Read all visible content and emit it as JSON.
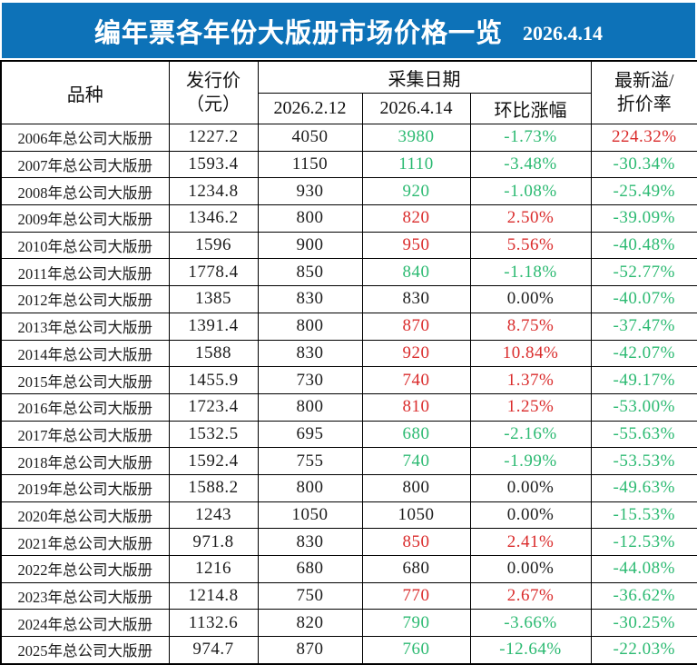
{
  "banner": {
    "title": "编年票各年份大版册市场价格一览",
    "date": "2026.4.14",
    "bg_color": "#0d72b8",
    "text_color": "#ffffff"
  },
  "header": {
    "variety": "品种",
    "issue_price_line1": "发行价",
    "issue_price_line2": "（元）",
    "collection_date": "采集日期",
    "date_col1": "2026.2.12",
    "date_col2": "2026.4.14",
    "mom_change": "环比涨幅",
    "premium_line1": "最新溢/",
    "premium_line2": "折价率"
  },
  "colors": {
    "up": "#da2c2c",
    "down": "#2cba72",
    "flat": "#1c1c1c",
    "banner_blue": "#0d72b8",
    "border_black": "#000000"
  },
  "chart_data": {
    "type": "table",
    "title": "编年票各年份大版册市场价格一览",
    "as_of_date": "2026.4.14",
    "columns": [
      "品种",
      "发行价（元）",
      "2026.2.12",
      "2026.4.14",
      "环比涨幅",
      "最新溢/折价率"
    ],
    "column_groups": {
      "采集日期": [
        "2026.2.12",
        "2026.4.14",
        "环比涨幅"
      ]
    },
    "rows": [
      {
        "variety": "2006年总公司大版册",
        "issue_price": "1227.2",
        "p1": "4050",
        "p2": "3980",
        "p2_trend": "down",
        "change": "-1.73%",
        "change_trend": "down",
        "premium": "224.32%",
        "premium_trend": "up"
      },
      {
        "variety": "2007年总公司大版册",
        "issue_price": "1593.4",
        "p1": "1150",
        "p2": "1110",
        "p2_trend": "down",
        "change": "-3.48%",
        "change_trend": "down",
        "premium": "-30.34%",
        "premium_trend": "down"
      },
      {
        "variety": "2008年总公司大版册",
        "issue_price": "1234.8",
        "p1": "930",
        "p2": "920",
        "p2_trend": "down",
        "change": "-1.08%",
        "change_trend": "down",
        "premium": "-25.49%",
        "premium_trend": "down"
      },
      {
        "variety": "2009年总公司大版册",
        "issue_price": "1346.2",
        "p1": "800",
        "p2": "820",
        "p2_trend": "up",
        "change": "2.50%",
        "change_trend": "up",
        "premium": "-39.09%",
        "premium_trend": "down"
      },
      {
        "variety": "2010年总公司大版册",
        "issue_price": "1596",
        "p1": "900",
        "p2": "950",
        "p2_trend": "up",
        "change": "5.56%",
        "change_trend": "up",
        "premium": "-40.48%",
        "premium_trend": "down"
      },
      {
        "variety": "2011年总公司大版册",
        "issue_price": "1778.4",
        "p1": "850",
        "p2": "840",
        "p2_trend": "down",
        "change": "-1.18%",
        "change_trend": "down",
        "premium": "-52.77%",
        "premium_trend": "down"
      },
      {
        "variety": "2012年总公司大版册",
        "issue_price": "1385",
        "p1": "830",
        "p2": "830",
        "p2_trend": "flat",
        "change": "0.00%",
        "change_trend": "flat",
        "premium": "-40.07%",
        "premium_trend": "down"
      },
      {
        "variety": "2013年总公司大版册",
        "issue_price": "1391.4",
        "p1": "800",
        "p2": "870",
        "p2_trend": "up",
        "change": "8.75%",
        "change_trend": "up",
        "premium": "-37.47%",
        "premium_trend": "down"
      },
      {
        "variety": "2014年总公司大版册",
        "issue_price": "1588",
        "p1": "830",
        "p2": "920",
        "p2_trend": "up",
        "change": "10.84%",
        "change_trend": "up",
        "premium": "-42.07%",
        "premium_trend": "down"
      },
      {
        "variety": "2015年总公司大版册",
        "issue_price": "1455.9",
        "p1": "730",
        "p2": "740",
        "p2_trend": "up",
        "change": "1.37%",
        "change_trend": "up",
        "premium": "-49.17%",
        "premium_trend": "down"
      },
      {
        "variety": "2016年总公司大版册",
        "issue_price": "1723.4",
        "p1": "800",
        "p2": "810",
        "p2_trend": "up",
        "change": "1.25%",
        "change_trend": "up",
        "premium": "-53.00%",
        "premium_trend": "down"
      },
      {
        "variety": "2017年总公司大版册",
        "issue_price": "1532.5",
        "p1": "695",
        "p2": "680",
        "p2_trend": "down",
        "change": "-2.16%",
        "change_trend": "down",
        "premium": "-55.63%",
        "premium_trend": "down"
      },
      {
        "variety": "2018年总公司大版册",
        "issue_price": "1592.4",
        "p1": "755",
        "p2": "740",
        "p2_trend": "down",
        "change": "-1.99%",
        "change_trend": "down",
        "premium": "-53.53%",
        "premium_trend": "down"
      },
      {
        "variety": "2019年总公司大版册",
        "issue_price": "1588.2",
        "p1": "800",
        "p2": "800",
        "p2_trend": "flat",
        "change": "0.00%",
        "change_trend": "flat",
        "premium": "-49.63%",
        "premium_trend": "down"
      },
      {
        "variety": "2020年总公司大版册",
        "issue_price": "1243",
        "p1": "1050",
        "p2": "1050",
        "p2_trend": "flat",
        "change": "0.00%",
        "change_trend": "flat",
        "premium": "-15.53%",
        "premium_trend": "down"
      },
      {
        "variety": "2021年总公司大版册",
        "issue_price": "971.8",
        "p1": "830",
        "p2": "850",
        "p2_trend": "up",
        "change": "2.41%",
        "change_trend": "up",
        "premium": "-12.53%",
        "premium_trend": "down"
      },
      {
        "variety": "2022年总公司大版册",
        "issue_price": "1216",
        "p1": "680",
        "p2": "680",
        "p2_trend": "flat",
        "change": "0.00%",
        "change_trend": "flat",
        "premium": "-44.08%",
        "premium_trend": "down"
      },
      {
        "variety": "2023年总公司大版册",
        "issue_price": "1214.8",
        "p1": "750",
        "p2": "770",
        "p2_trend": "up",
        "change": "2.67%",
        "change_trend": "up",
        "premium": "-36.62%",
        "premium_trend": "down"
      },
      {
        "variety": "2024年总公司大版册",
        "issue_price": "1132.6",
        "p1": "820",
        "p2": "790",
        "p2_trend": "down",
        "change": "-3.66%",
        "change_trend": "down",
        "premium": "-30.25%",
        "premium_trend": "down"
      },
      {
        "variety": "2025年总公司大版册",
        "issue_price": "974.7",
        "p1": "870",
        "p2": "760",
        "p2_trend": "down",
        "change": "-12.64%",
        "change_trend": "down",
        "premium": "-22.03%",
        "premium_trend": "down"
      }
    ]
  }
}
